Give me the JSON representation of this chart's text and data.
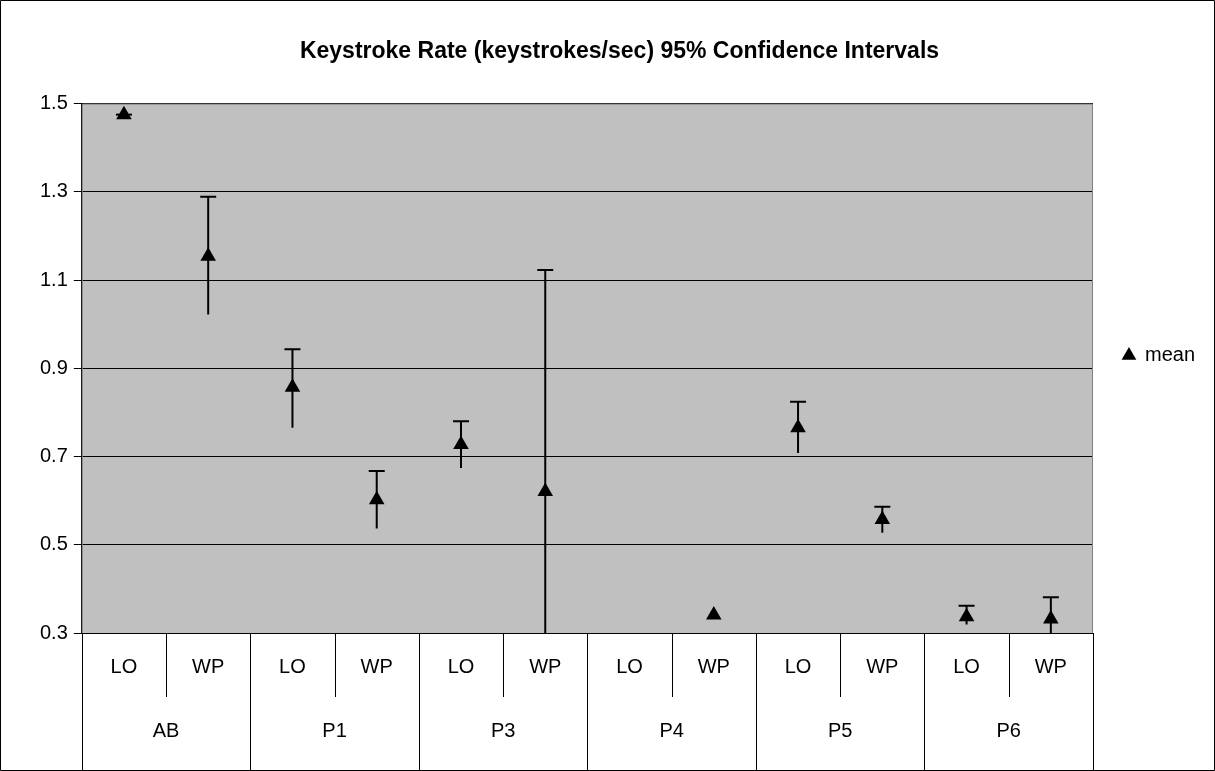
{
  "chart_data": {
    "type": "scatter",
    "title": "Keystroke Rate (keystrokes/sec) 95% Confidence Intervals",
    "categories": [
      "LO",
      "WP",
      "LO",
      "WP",
      "LO",
      "WP",
      "LO",
      "WP",
      "LO",
      "WP",
      "LO",
      "WP"
    ],
    "series": [
      {
        "name": "mean",
        "color": "#000000",
        "values": [
          1.475,
          1.154,
          0.857,
          0.602,
          0.727,
          0.621,
          null,
          0.341,
          0.765,
          0.557,
          0.337,
          0.332
        ],
        "errors": [
          [
            1.475,
            1.475
          ],
          [
            1.022,
            1.289
          ],
          [
            0.765,
            0.943
          ],
          [
            0.537,
            0.667
          ],
          [
            0.674,
            0.78
          ],
          [
            0.3,
            1.123
          ],
          null,
          null,
          [
            0.708,
            0.824
          ],
          [
            0.527,
            0.586
          ],
          [
            0.319,
            0.362
          ],
          [
            0.3,
            0.381
          ]
        ]
      }
    ],
    "annotations": [
      "AB",
      "P1",
      "P3",
      "P4",
      "P5",
      "P6"
    ],
    "ylim": [
      0.3,
      1.5
    ],
    "yticks": [
      0.3,
      0.5,
      0.7,
      0.9,
      1.1,
      1.3,
      1.5
    ],
    "grid": "y",
    "legend": "right",
    "marker": "triangle"
  }
}
